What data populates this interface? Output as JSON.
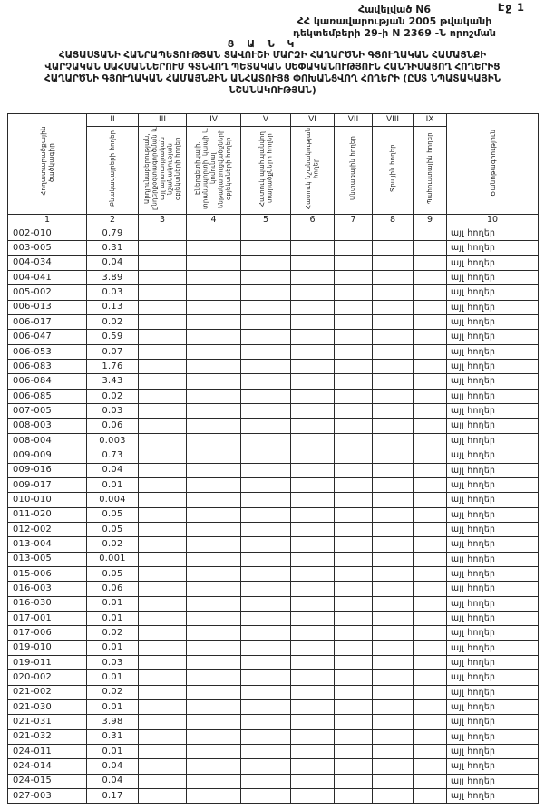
{
  "page": {
    "page_number_label": "Էջ 1",
    "appendix": {
      "line1": "Հավելված N6",
      "line2": "ՀՀ կառավարության 2005 թվականի",
      "line3": "դեկտեմբերի 29-ի N 2369 -Ն որոշման"
    },
    "list_label": "Ց Ա Ն Կ",
    "title_lines": [
      "ՀԱՅԱՍՏԱՆԻ ՀԱՆՐԱՊԵՏՈՒԹՅԱՆ ՏԱՎՈՒՇԻ ՄԱՐԶԻ ՀԱՂԱՐԾՆԻ ԳՅՈՒՂԱԿԱՆ ՀԱՄԱՅՆՔԻ",
      "ՎԱՐՉԱԿԱՆ ՍԱՀՄԱՆՆԵՐՈՒՄ ԳՏՆՎՈՂ ՊԵՏԱԿԱՆ ՍԵՓԱԿԱՆՈՒԹՅՈՒՆ ՀԱՆԴԻՍԱՑՈՂ ՀՈՂԵՐԻՑ",
      "ՀԱՂԱՐԾՆԻ ԳՅՈՒՂԱԿԱՆ ՀԱՄԱՅՆՔԻՆ ԱՆՀԱՏՈՒՅՑ ՓՈԽԱՆՑՎՈՂ ՀՈՂԵՐԻ (ԸՍՏ ՆՊԱՏԱԿԱՅԻՆ",
      "ՆՇԱՆԱԿՈՒԹՅԱՆ)"
    ]
  },
  "table": {
    "roman_numerals": [
      "II",
      "III",
      "IV",
      "V",
      "VI",
      "VII",
      "VIII",
      "IX"
    ],
    "column_numbers": [
      "1",
      "2",
      "3",
      "4",
      "5",
      "6",
      "7",
      "8",
      "9",
      "10"
    ],
    "columns": [
      {
        "label": "Հողատարածքային ծածկագիր"
      },
      {
        "label": "Բնակավայրերի հողեր"
      },
      {
        "label": "Արդյունաբերության, ընդերքօգտագործման և այլ արտադրական նշանակության օբյեկտների հողեր"
      },
      {
        "label": "Էներգետիկայի, տրանսպորտի, կապի և կոմունալ ենթակառուցվածքների օբյեկտների հողեր"
      },
      {
        "label": "Հատուկ պահպանվող տարածքների հողեր"
      },
      {
        "label": "Հատուկ նշանակության հողեր"
      },
      {
        "label": "Անտառային հողեր"
      },
      {
        "label": "Ջրային հողեր"
      },
      {
        "label": "Պահուստային հողեր"
      },
      {
        "label": "Ծանոթագրություն"
      }
    ],
    "rows": [
      [
        "002-010",
        "0.79",
        "",
        "",
        "",
        "",
        "",
        "",
        "",
        "այլ հողեր"
      ],
      [
        "003-005",
        "0.31",
        "",
        "",
        "",
        "",
        "",
        "",
        "",
        "այլ հողեր"
      ],
      [
        "004-034",
        "0.04",
        "",
        "",
        "",
        "",
        "",
        "",
        "",
        "այլ հողեր"
      ],
      [
        "004-041",
        "3.89",
        "",
        "",
        "",
        "",
        "",
        "",
        "",
        "այլ հողեր"
      ],
      [
        "005-002",
        "0.03",
        "",
        "",
        "",
        "",
        "",
        "",
        "",
        "այլ հողեր"
      ],
      [
        "006-013",
        "0.13",
        "",
        "",
        "",
        "",
        "",
        "",
        "",
        "այլ հողեր"
      ],
      [
        "006-017",
        "0.02",
        "",
        "",
        "",
        "",
        "",
        "",
        "",
        "այլ հողեր"
      ],
      [
        "006-047",
        "0.59",
        "",
        "",
        "",
        "",
        "",
        "",
        "",
        "այլ հողեր"
      ],
      [
        "006-053",
        "0.07",
        "",
        "",
        "",
        "",
        "",
        "",
        "",
        "այլ հողեր"
      ],
      [
        "006-083",
        "1.76",
        "",
        "",
        "",
        "",
        "",
        "",
        "",
        "այլ հողեր"
      ],
      [
        "006-084",
        "3.43",
        "",
        "",
        "",
        "",
        "",
        "",
        "",
        "այլ հողեր"
      ],
      [
        "006-085",
        "0.02",
        "",
        "",
        "",
        "",
        "",
        "",
        "",
        "այլ հողեր"
      ],
      [
        "007-005",
        "0.03",
        "",
        "",
        "",
        "",
        "",
        "",
        "",
        "այլ հողեր"
      ],
      [
        "008-003",
        "0.06",
        "",
        "",
        "",
        "",
        "",
        "",
        "",
        "այլ հողեր"
      ],
      [
        "008-004",
        "0.003",
        "",
        "",
        "",
        "",
        "",
        "",
        "",
        "այլ հողեր"
      ],
      [
        "009-009",
        "0.73",
        "",
        "",
        "",
        "",
        "",
        "",
        "",
        "այլ հողեր"
      ],
      [
        "009-016",
        "0.04",
        "",
        "",
        "",
        "",
        "",
        "",
        "",
        "այլ հողեր"
      ],
      [
        "009-017",
        "0.01",
        "",
        "",
        "",
        "",
        "",
        "",
        "",
        "այլ հողեր"
      ],
      [
        "010-010",
        "0.004",
        "",
        "",
        "",
        "",
        "",
        "",
        "",
        "այլ հողեր"
      ],
      [
        "011-020",
        "0.05",
        "",
        "",
        "",
        "",
        "",
        "",
        "",
        "այլ հողեր"
      ],
      [
        "012-002",
        "0.05",
        "",
        "",
        "",
        "",
        "",
        "",
        "",
        "այլ հողեր"
      ],
      [
        "013-004",
        "0.02",
        "",
        "",
        "",
        "",
        "",
        "",
        "",
        "այլ հողեր"
      ],
      [
        "013-005",
        "0.001",
        "",
        "",
        "",
        "",
        "",
        "",
        "",
        "այլ հողեր"
      ],
      [
        "015-006",
        "0.05",
        "",
        "",
        "",
        "",
        "",
        "",
        "",
        "այլ հողեր"
      ],
      [
        "016-003",
        "0.06",
        "",
        "",
        "",
        "",
        "",
        "",
        "",
        "այլ հողեր"
      ],
      [
        "016-030",
        "0.01",
        "",
        "",
        "",
        "",
        "",
        "",
        "",
        "այլ հողեր"
      ],
      [
        "017-001",
        "0.01",
        "",
        "",
        "",
        "",
        "",
        "",
        "",
        "այլ հողեր"
      ],
      [
        "017-006",
        "0.02",
        "",
        "",
        "",
        "",
        "",
        "",
        "",
        "այլ հողեր"
      ],
      [
        "019-010",
        "0.01",
        "",
        "",
        "",
        "",
        "",
        "",
        "",
        "այլ հողեր"
      ],
      [
        "019-011",
        "0.03",
        "",
        "",
        "",
        "",
        "",
        "",
        "",
        "այլ հողեր"
      ],
      [
        "020-002",
        "0.01",
        "",
        "",
        "",
        "",
        "",
        "",
        "",
        "այլ հողեր"
      ],
      [
        "021-002",
        "0.02",
        "",
        "",
        "",
        "",
        "",
        "",
        "",
        "այլ հողեր"
      ],
      [
        "021-030",
        "0.01",
        "",
        "",
        "",
        "",
        "",
        "",
        "",
        "այլ հողեր"
      ],
      [
        "021-031",
        "3.98",
        "",
        "",
        "",
        "",
        "",
        "",
        "",
        "այլ հողեր"
      ],
      [
        "021-032",
        "0.31",
        "",
        "",
        "",
        "",
        "",
        "",
        "",
        "այլ հողեր"
      ],
      [
        "024-011",
        "0.01",
        "",
        "",
        "",
        "",
        "",
        "",
        "",
        "այլ հողեր"
      ],
      [
        "024-014",
        "0.04",
        "",
        "",
        "",
        "",
        "",
        "",
        "",
        "այլ հողեր"
      ],
      [
        "024-015",
        "0.04",
        "",
        "",
        "",
        "",
        "",
        "",
        "",
        "այլ հողեր"
      ],
      [
        "027-003",
        "0.17",
        "",
        "",
        "",
        "",
        "",
        "",
        "",
        "այլ հողեր"
      ]
    ]
  },
  "colors": {
    "paper": "#ffffff",
    "ink": "#1c1c1c",
    "border": "#2a2a2a"
  }
}
